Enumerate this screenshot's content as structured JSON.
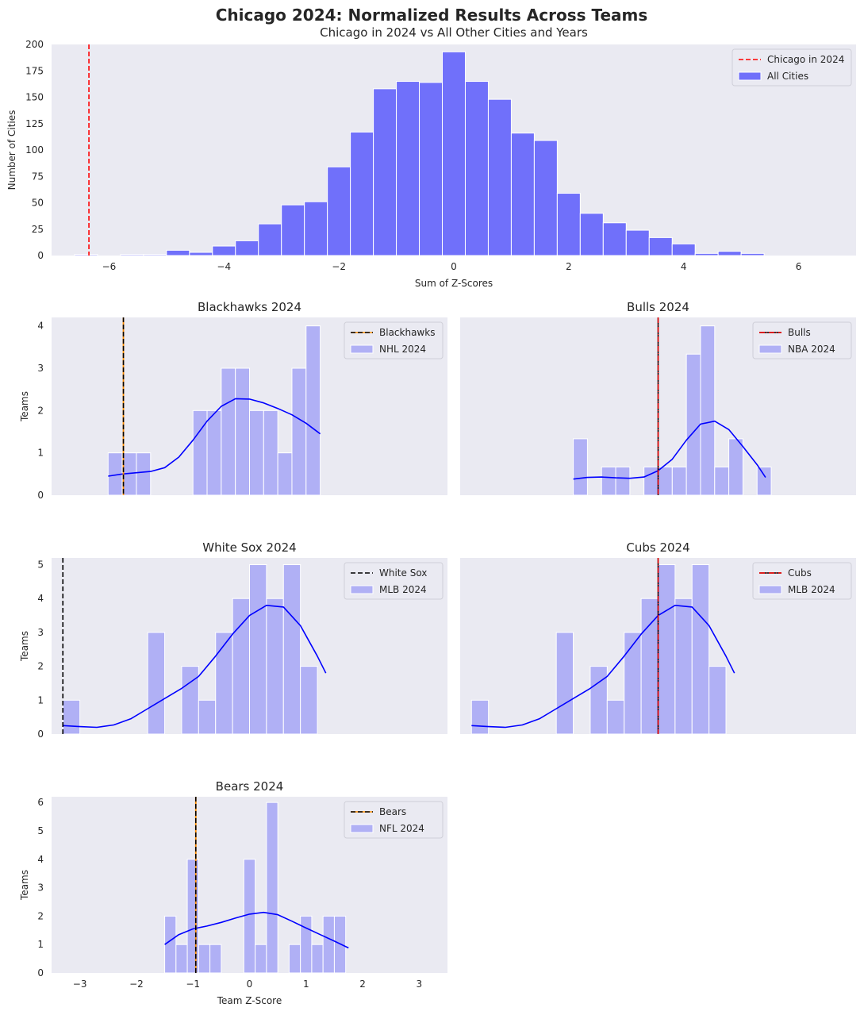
{
  "figure": {
    "title": "Chicago 2024: Normalized Results Across Teams",
    "colors": {
      "background": "#eaeaf2",
      "hist_main": "#7070fa",
      "hist_team": "#b0b0f5",
      "kde": "#0000ff",
      "chicago": "#ff0000",
      "team_line": "#000000",
      "grid_edge": "#ffffff"
    }
  },
  "chart_data": [
    {
      "id": "main",
      "type": "bar",
      "title": "Chicago in 2024 vs All Other Cities and Years",
      "xlabel": "Sum of Z-Scores",
      "ylabel": "Number of Cities",
      "xlim": [
        -7,
        7
      ],
      "ylim": [
        0,
        200
      ],
      "xticks": [
        -6,
        -4,
        -2,
        0,
        2,
        4,
        6
      ],
      "yticks": [
        0,
        25,
        50,
        75,
        100,
        125,
        150,
        175,
        200
      ],
      "bin_start": -6.6,
      "bin_width": 0.4,
      "values": [
        1,
        0,
        1,
        1,
        5,
        3,
        9,
        14,
        30,
        48,
        51,
        84,
        117,
        158,
        165,
        164,
        193,
        165,
        148,
        116,
        109,
        59,
        40,
        31,
        24,
        17,
        11,
        2,
        4,
        2
      ],
      "reference": {
        "label": "Chicago in 2024",
        "x": -6.35,
        "style": "dashed-red"
      },
      "legend": [
        "Chicago in 2024",
        "All Cities"
      ],
      "legend_position": "top-right"
    },
    {
      "id": "blackhawks",
      "type": "bar",
      "title": "Blackhawks 2024",
      "ylabel": "Teams",
      "xlim": [
        -3.5,
        3.5
      ],
      "ylim": [
        0,
        4.2
      ],
      "yticks": [
        0,
        1,
        2,
        3,
        4
      ],
      "show_xticks": false,
      "bin_start": -2.5,
      "bin_width": 0.25,
      "values": [
        1,
        1,
        1,
        0,
        0,
        0,
        2,
        2,
        3,
        3,
        2,
        2,
        1,
        3,
        4
      ],
      "kde": {
        "x": [
          -2.5,
          -2.25,
          -2.0,
          -1.75,
          -1.5,
          -1.25,
          -1.0,
          -0.75,
          -0.5,
          -0.25,
          0.0,
          0.25,
          0.5,
          0.75,
          1.0,
          1.25
        ],
        "y": [
          0.45,
          0.5,
          0.53,
          0.56,
          0.65,
          0.9,
          1.3,
          1.75,
          2.1,
          2.28,
          2.27,
          2.18,
          2.05,
          1.9,
          1.7,
          1.45
        ]
      },
      "reference": {
        "label": "Blackhawks",
        "x": -2.23,
        "style": "dashed-black-on-orange"
      },
      "legend": [
        "Blackhawks",
        "NHL 2024"
      ],
      "legend_position": "top-right"
    },
    {
      "id": "bulls",
      "type": "bar",
      "title": "Bulls 2024",
      "ylabel": "",
      "xlim": [
        -3.5,
        3.5
      ],
      "ylim": [
        0,
        4.2
      ],
      "yticks": [],
      "show_xticks": false,
      "bin_start": -1.5,
      "bin_width": 0.25,
      "values": [
        1.333,
        0,
        0.667,
        0.667,
        0,
        0.667,
        0.667,
        0.667,
        3.333,
        4,
        0.667,
        1.333,
        0,
        0.667
      ],
      "kde": {
        "x": [
          -1.5,
          -1.25,
          -1.0,
          -0.75,
          -0.5,
          -0.25,
          0.0,
          0.25,
          0.5,
          0.75,
          1.0,
          1.25,
          1.5,
          1.75,
          1.9
        ],
        "y": [
          0.38,
          0.42,
          0.43,
          0.41,
          0.4,
          0.43,
          0.58,
          0.85,
          1.3,
          1.68,
          1.75,
          1.55,
          1.15,
          0.72,
          0.42
        ]
      },
      "reference": {
        "label": "Bulls",
        "x": 0.0,
        "style": "dashdot-red-on-black"
      },
      "legend": [
        "Bulls",
        "NBA 2024"
      ],
      "legend_position": "top-right"
    },
    {
      "id": "whitesox",
      "type": "bar",
      "title": "White Sox 2024",
      "ylabel": "Teams",
      "xlim": [
        -3.5,
        3.5
      ],
      "ylim": [
        0,
        5.2
      ],
      "yticks": [
        0,
        1,
        2,
        3,
        4,
        5
      ],
      "show_xticks": false,
      "bin_start": -3.3,
      "bin_width": 0.3,
      "values": [
        1,
        0,
        0,
        0,
        0,
        3,
        0,
        2,
        1,
        3,
        4,
        5,
        4,
        5,
        2
      ],
      "kde": {
        "x": [
          -3.3,
          -3.0,
          -2.7,
          -2.4,
          -2.1,
          -1.8,
          -1.5,
          -1.2,
          -0.9,
          -0.6,
          -0.3,
          0.0,
          0.3,
          0.6,
          0.9,
          1.2,
          1.35
        ],
        "y": [
          0.25,
          0.22,
          0.2,
          0.27,
          0.45,
          0.75,
          1.05,
          1.35,
          1.7,
          2.3,
          2.95,
          3.5,
          3.8,
          3.75,
          3.2,
          2.3,
          1.8
        ]
      },
      "reference": {
        "label": "White Sox",
        "x": -3.3,
        "style": "dashed-black"
      },
      "legend": [
        "White Sox",
        "MLB 2024"
      ],
      "legend_position": "top-right"
    },
    {
      "id": "cubs",
      "type": "bar",
      "title": "Cubs 2024",
      "ylabel": "",
      "xlim": [
        -3.5,
        3.5
      ],
      "ylim": [
        0,
        5.2
      ],
      "yticks": [],
      "show_xticks": false,
      "bin_start": -3.3,
      "bin_width": 0.3,
      "values": [
        1,
        0,
        0,
        0,
        0,
        3,
        0,
        2,
        1,
        3,
        4,
        5,
        4,
        5,
        2
      ],
      "kde": {
        "x": [
          -3.3,
          -3.0,
          -2.7,
          -2.4,
          -2.1,
          -1.8,
          -1.5,
          -1.2,
          -0.9,
          -0.6,
          -0.3,
          0.0,
          0.3,
          0.6,
          0.9,
          1.2,
          1.35
        ],
        "y": [
          0.25,
          0.22,
          0.2,
          0.27,
          0.45,
          0.75,
          1.05,
          1.35,
          1.7,
          2.3,
          2.95,
          3.5,
          3.8,
          3.75,
          3.2,
          2.3,
          1.8
        ]
      },
      "reference": {
        "label": "Cubs",
        "x": 0.0,
        "style": "dashdot-red-on-black"
      },
      "legend": [
        "Cubs",
        "MLB 2024"
      ],
      "legend_position": "top-right"
    },
    {
      "id": "bears",
      "type": "bar",
      "title": "Bears 2024",
      "ylabel": "Teams",
      "xlabel": "Team Z-Score",
      "xlim": [
        -3.5,
        3.5
      ],
      "ylim": [
        0,
        6.2
      ],
      "xticks": [
        -3,
        -2,
        -1,
        0,
        1,
        2,
        3
      ],
      "yticks": [
        0,
        1,
        2,
        3,
        4,
        5,
        6
      ],
      "show_xticks": true,
      "bin_start": -1.5,
      "bin_width": 0.2,
      "values": [
        2,
        1,
        4,
        1,
        1,
        0,
        0,
        4,
        1,
        6,
        0,
        1,
        2,
        1,
        2,
        2
      ],
      "kde": {
        "x": [
          -1.5,
          -1.25,
          -1.0,
          -0.75,
          -0.5,
          -0.25,
          0.0,
          0.25,
          0.5,
          0.75,
          1.0,
          1.25,
          1.5,
          1.75
        ],
        "y": [
          1.0,
          1.35,
          1.55,
          1.65,
          1.78,
          1.93,
          2.07,
          2.13,
          2.05,
          1.82,
          1.58,
          1.35,
          1.12,
          0.88
        ]
      },
      "reference": {
        "label": "Bears",
        "x": -0.95,
        "style": "dashed-black-on-orange"
      },
      "legend": [
        "Bears",
        "NFL 2024"
      ],
      "legend_position": "top-right"
    }
  ]
}
